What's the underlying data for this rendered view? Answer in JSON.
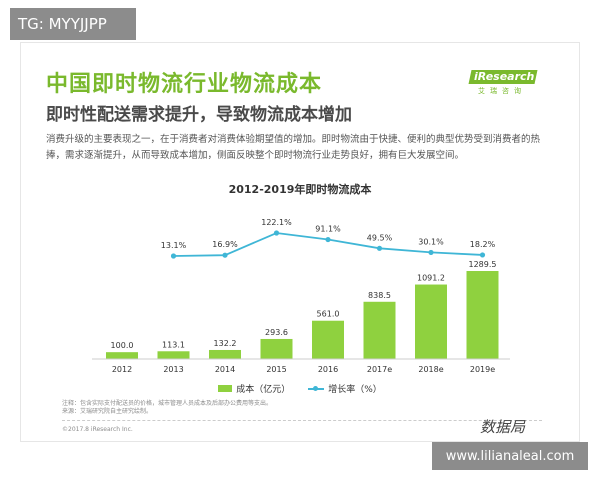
{
  "overlay": {
    "tg_label": "TG: MYYJJPP",
    "website": "www.lilianaleal.com",
    "watermark_logo": "数据局"
  },
  "slide": {
    "title": "中国即时物流行业物流成本",
    "subtitle": "即时性配送需求提升，导致物流成本增加",
    "description": "消费升级的主要表现之一，在于消费者对消费体验期望值的增加。即时物流由于快捷、便利的典型优势受到消费者的热捧，需求逐渐提升，从而导致成本增加，侧面反映整个即时物流行业走势良好，拥有巨大发展空间。",
    "logo_text": "iResearch",
    "logo_sub": "艾瑞咨询",
    "note_1": "注释：包含实际支付配送员的价格，城市管理人员成本及后部办公费用等支出。",
    "note_2": "来源：艾瑞研究院自主研究绘制。",
    "copyright": "©2017.8 iResearch Inc."
  },
  "colors": {
    "accent_green": "#7ab92d",
    "bar_green": "#8fd13f",
    "line_blue": "#3fb6d6"
  },
  "chart_data": {
    "type": "bar",
    "title": "2012-2019年即时物流成本",
    "categories": [
      "2012",
      "2013",
      "2014",
      "2015",
      "2016",
      "2017e",
      "2018e",
      "2019e"
    ],
    "series": [
      {
        "name": "成本（亿元）",
        "type": "bar",
        "values": [
          100.0,
          113.1,
          132.2,
          293.6,
          561.0,
          838.5,
          1091.2,
          1289.5
        ],
        "labels": [
          "100.0",
          "113.1",
          "132.2",
          "293.6",
          "561.0",
          "838.5",
          "1091.2",
          "1289.5"
        ]
      },
      {
        "name": "增长率（%）",
        "type": "line",
        "values": [
          null,
          13.1,
          16.9,
          122.1,
          91.1,
          49.5,
          30.1,
          18.2
        ],
        "labels": [
          "",
          "13.1%",
          "16.9%",
          "122.1%",
          "91.1%",
          "49.5%",
          "30.1%",
          "18.2%"
        ]
      }
    ],
    "xlabel": "",
    "ylabel": "",
    "grid": false,
    "legend": "bottom"
  }
}
